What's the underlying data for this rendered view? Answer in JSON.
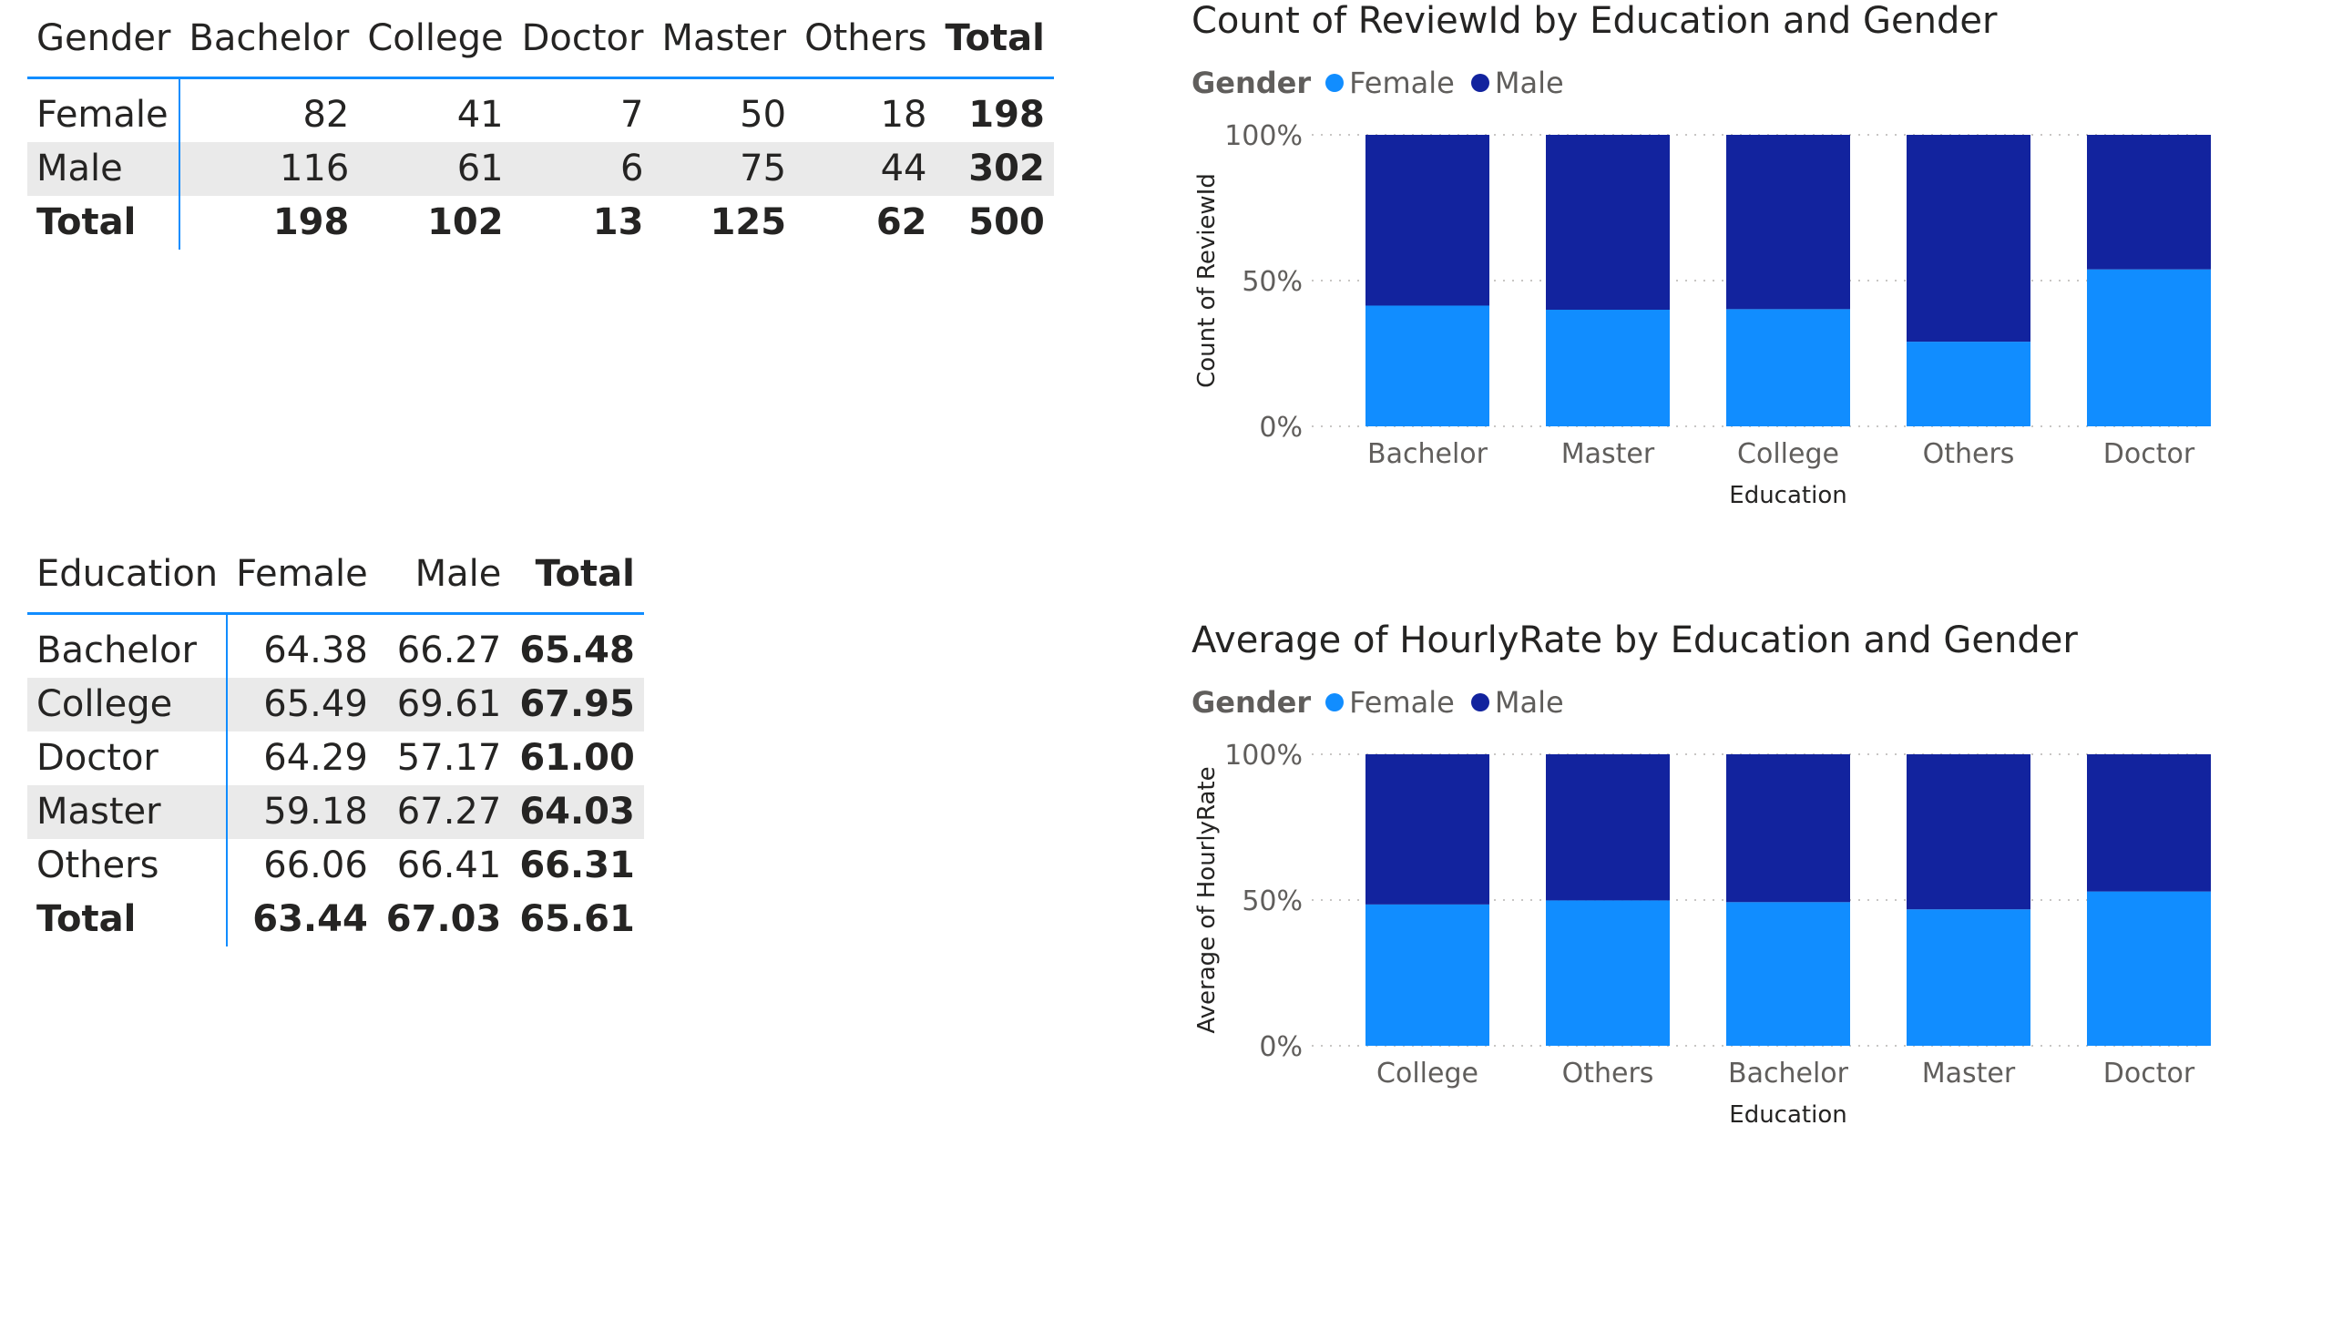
{
  "matrix1": {
    "headers": [
      "Gender",
      "Bachelor",
      "College",
      "Doctor",
      "Master",
      "Others",
      "Total"
    ],
    "rows": [
      {
        "label": "Female",
        "values": [
          "82",
          "41",
          "7",
          "50",
          "18"
        ],
        "total": "198"
      },
      {
        "label": "Male",
        "values": [
          "116",
          "61",
          "6",
          "75",
          "44"
        ],
        "total": "302"
      },
      {
        "label": "Total",
        "values": [
          "198",
          "102",
          "13",
          "125",
          "62"
        ],
        "total": "500"
      }
    ]
  },
  "matrix2": {
    "headers": [
      "Education",
      "Female",
      "Male",
      "Total"
    ],
    "rows": [
      {
        "label": "Bachelor",
        "values": [
          "64.38",
          "66.27"
        ],
        "total": "65.48"
      },
      {
        "label": "College",
        "values": [
          "65.49",
          "69.61"
        ],
        "total": "67.95"
      },
      {
        "label": "Doctor",
        "values": [
          "64.29",
          "57.17"
        ],
        "total": "61.00"
      },
      {
        "label": "Master",
        "values": [
          "59.18",
          "67.27"
        ],
        "total": "64.03"
      },
      {
        "label": "Others",
        "values": [
          "66.06",
          "66.41"
        ],
        "total": "66.31"
      },
      {
        "label": "Total",
        "values": [
          "63.44",
          "67.03"
        ],
        "total": "65.61"
      }
    ]
  },
  "colors": {
    "female": "#118dff",
    "male": "#12239e",
    "accent": "#118dff",
    "row_shade": "#eaeaea"
  },
  "chart_data": [
    {
      "type": "bar",
      "stacking": "100%",
      "title": "Count of ReviewId by Education and Gender",
      "legend_title": "Gender",
      "legend_position": "top-left",
      "xlabel": "Education",
      "ylabel": "Count of ReviewId",
      "categories": [
        "Bachelor",
        "Master",
        "College",
        "Others",
        "Doctor"
      ],
      "series": [
        {
          "name": "Female",
          "color": "#118dff",
          "values": [
            82,
            50,
            41,
            18,
            7
          ]
        },
        {
          "name": "Male",
          "color": "#12239e",
          "values": [
            116,
            75,
            61,
            44,
            6
          ]
        }
      ],
      "yticks": [
        "0%",
        "50%",
        "100%"
      ],
      "ylim": [
        0,
        100
      ],
      "grid": true
    },
    {
      "type": "bar",
      "stacking": "100%",
      "title": "Average of HourlyRate by Education and Gender",
      "legend_title": "Gender",
      "legend_position": "top-left",
      "xlabel": "Education",
      "ylabel": "Average of HourlyRate",
      "categories": [
        "College",
        "Others",
        "Bachelor",
        "Master",
        "Doctor"
      ],
      "series": [
        {
          "name": "Female",
          "color": "#118dff",
          "values": [
            65.49,
            66.06,
            64.38,
            59.18,
            64.29
          ]
        },
        {
          "name": "Male",
          "color": "#12239e",
          "values": [
            69.61,
            66.41,
            66.27,
            67.27,
            57.17
          ]
        }
      ],
      "yticks": [
        "0%",
        "50%",
        "100%"
      ],
      "ylim": [
        0,
        100
      ],
      "grid": true
    }
  ]
}
